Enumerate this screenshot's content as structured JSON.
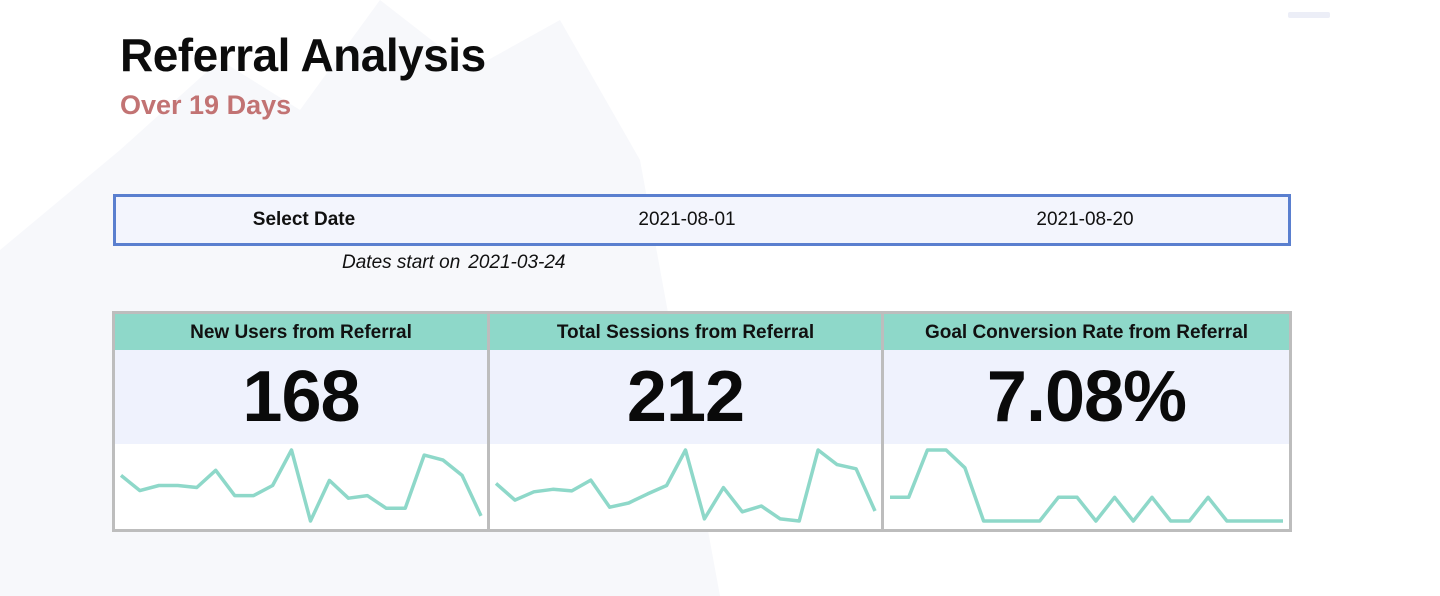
{
  "header": {
    "title": "Referral Analysis",
    "subtitle": "Over 19 Days"
  },
  "date_selector": {
    "label": "Select Date",
    "start_date": "2021-08-01",
    "end_date": "2021-08-20"
  },
  "note": {
    "prefix": "Dates start on",
    "date": "2021-03-24"
  },
  "colors": {
    "title": "#0c0c0c",
    "subtitle": "#c27373",
    "date_bar_border": "#5a7fcf",
    "card_header": "#8ed8c9",
    "sparkline": "#8ed8c9",
    "card_value_bg": "#eff2fd"
  },
  "cards": [
    {
      "title": "New Users from Referral",
      "value": "168",
      "sparkline": [
        5,
        2,
        3,
        3,
        2.6,
        6,
        1,
        1,
        3,
        10,
        -4,
        4,
        0.5,
        1,
        -1.5,
        -1.5,
        9,
        8,
        5,
        -3
      ]
    },
    {
      "title": "Total Sessions from Referral",
      "value": "212",
      "sparkline": [
        7,
        3,
        5,
        5.6,
        5.2,
        7.8,
        1.3,
        2.3,
        4.5,
        6.5,
        15,
        -1.5,
        6,
        0.2,
        1.6,
        -1.5,
        -2,
        15,
        11.5,
        10.5,
        0.4
      ]
    },
    {
      "title": "Goal Conversion Rate from Referral",
      "value": "7.08%",
      "sparkline": [
        2,
        2,
        6,
        6,
        4.5,
        0,
        0,
        0,
        0,
        2,
        2,
        0,
        2,
        0,
        2,
        0,
        0,
        2,
        0,
        0,
        0,
        0
      ]
    }
  ]
}
